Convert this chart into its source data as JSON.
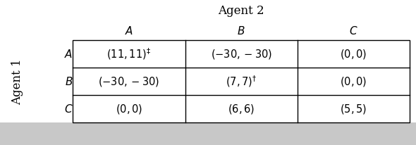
{
  "title_agent2": "Agent 2",
  "label_agent1": "Agent 1",
  "col_headers": [
    "$A$",
    "$B$",
    "$C$"
  ],
  "row_headers": [
    "$A$",
    "$B$",
    "$C$"
  ],
  "cells": [
    [
      "$(11, 11)^{\\ddagger}$",
      "$(-30, -30)$",
      "$(0, 0)$"
    ],
    [
      "$(-30, -30)$",
      "$(7, 7)^{\\dagger}$",
      "$(0, 0)$"
    ],
    [
      "$(0, 0)$",
      "$(6, 6)$",
      "$(5, 5)$"
    ]
  ],
  "figsize": [
    5.9,
    2.06
  ],
  "dpi": 100,
  "bg_color": "#ffffff",
  "bottom_strip_color": "#c8c8c8",
  "table_edge_color": "#000000",
  "cell_font_size": 10.5,
  "header_font_size": 11,
  "title_font_size": 12,
  "agent1_font_size": 12
}
